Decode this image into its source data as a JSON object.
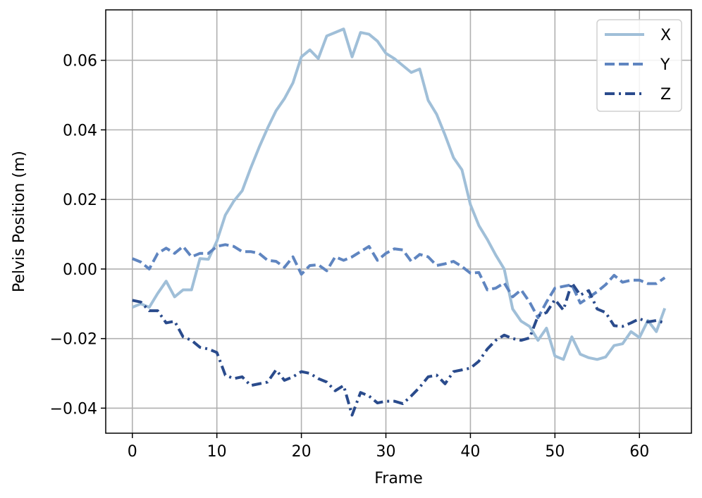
{
  "chart_data": {
    "type": "line",
    "xlabel": "Frame",
    "ylabel": "Pelvis Position (m)",
    "xlim": [
      -3.15,
      66.15
    ],
    "ylim": [
      -0.0472,
      0.0745
    ],
    "xticks": [
      0,
      10,
      20,
      30,
      40,
      50,
      60
    ],
    "xtick_labels": [
      "0",
      "10",
      "20",
      "30",
      "40",
      "50",
      "60"
    ],
    "yticks": [
      -0.04,
      -0.02,
      0.0,
      0.02,
      0.04,
      0.06
    ],
    "ytick_labels": [
      "−0.04",
      "−0.02",
      "0.00",
      "0.02",
      "0.04",
      "0.06"
    ],
    "grid": true,
    "legend_position": "top-right",
    "x": [
      0,
      1,
      2,
      3,
      4,
      5,
      6,
      7,
      8,
      9,
      10,
      11,
      12,
      13,
      14,
      15,
      16,
      17,
      18,
      19,
      20,
      21,
      22,
      23,
      24,
      25,
      26,
      27,
      28,
      29,
      30,
      31,
      32,
      33,
      34,
      35,
      36,
      37,
      38,
      39,
      40,
      41,
      42,
      43,
      44,
      45,
      46,
      47,
      48,
      49,
      50,
      51,
      52,
      53,
      54,
      55,
      56,
      57,
      58,
      59,
      60,
      61,
      62,
      63
    ],
    "series": [
      {
        "name": "X",
        "color": "#a0bfd8",
        "dash": "solid",
        "values": [
          -0.011,
          -0.01,
          -0.011,
          -0.007,
          -0.0035,
          -0.008,
          -0.006,
          -0.006,
          0.003,
          0.0028,
          0.008,
          0.0155,
          0.0195,
          0.0225,
          0.029,
          0.035,
          0.0405,
          0.0455,
          0.049,
          0.0535,
          0.061,
          0.063,
          0.0605,
          0.067,
          0.068,
          0.069,
          0.061,
          0.068,
          0.0675,
          0.0655,
          0.062,
          0.0605,
          0.0585,
          0.0565,
          0.0575,
          0.0485,
          0.0445,
          0.0385,
          0.032,
          0.0285,
          0.0185,
          0.0125,
          0.0085,
          0.004,
          0.0,
          -0.0115,
          -0.015,
          -0.0165,
          -0.0205,
          -0.017,
          -0.025,
          -0.026,
          -0.0195,
          -0.0245,
          -0.0255,
          -0.026,
          -0.0253,
          -0.022,
          -0.0215,
          -0.018,
          -0.0197,
          -0.0148,
          -0.018,
          -0.0113
        ]
      },
      {
        "name": "Y",
        "color": "#5f85c0",
        "dash": "dashed",
        "values": [
          0.003,
          0.002,
          0.0,
          0.0045,
          0.006,
          0.0045,
          0.0065,
          0.0035,
          0.0045,
          0.0045,
          0.0065,
          0.007,
          0.0065,
          0.005,
          0.005,
          0.0045,
          0.0025,
          0.0022,
          0.0005,
          0.0035,
          -0.0015,
          0.001,
          0.0012,
          -0.0005,
          0.0035,
          0.0025,
          0.0035,
          0.005,
          0.0065,
          0.0025,
          0.0045,
          0.0058,
          0.0055,
          0.0022,
          0.0042,
          0.0035,
          0.001,
          0.0015,
          0.0022,
          0.0007,
          -0.0012,
          -0.001,
          -0.006,
          -0.0055,
          -0.004,
          -0.008,
          -0.006,
          -0.0095,
          -0.014,
          -0.0095,
          -0.0055,
          -0.005,
          -0.0045,
          -0.0098,
          -0.0082,
          -0.0065,
          -0.0045,
          -0.0018,
          -0.0038,
          -0.0032,
          -0.0032,
          -0.0042,
          -0.0042,
          -0.0025
        ]
      },
      {
        "name": "Z",
        "color": "#2a4b8c",
        "dash": "dashdot",
        "values": [
          -0.009,
          -0.0095,
          -0.012,
          -0.012,
          -0.0155,
          -0.015,
          -0.0195,
          -0.0205,
          -0.0225,
          -0.023,
          -0.024,
          -0.0305,
          -0.0315,
          -0.031,
          -0.0335,
          -0.033,
          -0.0325,
          -0.029,
          -0.032,
          -0.031,
          -0.0295,
          -0.03,
          -0.0315,
          -0.0325,
          -0.035,
          -0.0335,
          -0.042,
          -0.0355,
          -0.0365,
          -0.0385,
          -0.038,
          -0.038,
          -0.0387,
          -0.0365,
          -0.034,
          -0.031,
          -0.0305,
          -0.033,
          -0.0295,
          -0.029,
          -0.0285,
          -0.0265,
          -0.023,
          -0.0205,
          -0.019,
          -0.02,
          -0.0205,
          -0.0198,
          -0.0135,
          -0.0125,
          -0.0088,
          -0.0118,
          -0.004,
          -0.0075,
          -0.0062,
          -0.0115,
          -0.0125,
          -0.0163,
          -0.0165,
          -0.0155,
          -0.0143,
          -0.0152,
          -0.0148,
          -0.0155
        ]
      }
    ]
  }
}
